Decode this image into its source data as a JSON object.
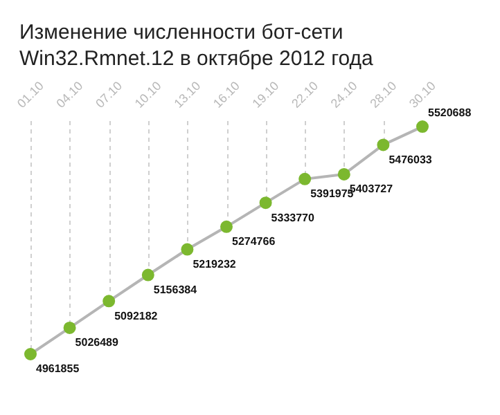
{
  "chart_data": {
    "type": "line",
    "title": "Изменение численности бот-сети Win32.Rmnet.12 в октябре 2012 года",
    "categories": [
      "01.10",
      "04.10",
      "07.10",
      "10.10",
      "13.10",
      "16.10",
      "19.10",
      "22.10",
      "24.10",
      "28.10",
      "30.10"
    ],
    "series": [
      {
        "color": "#7cb82f",
        "values": [
          4961855,
          5026489,
          5092182,
          5156384,
          5219232,
          5274766,
          5333770,
          5391975,
          5403727,
          5476033,
          5520688
        ]
      }
    ],
    "data_labels": true,
    "grid": "x",
    "legend": false,
    "marker": "circle",
    "line_style": "solid"
  }
}
